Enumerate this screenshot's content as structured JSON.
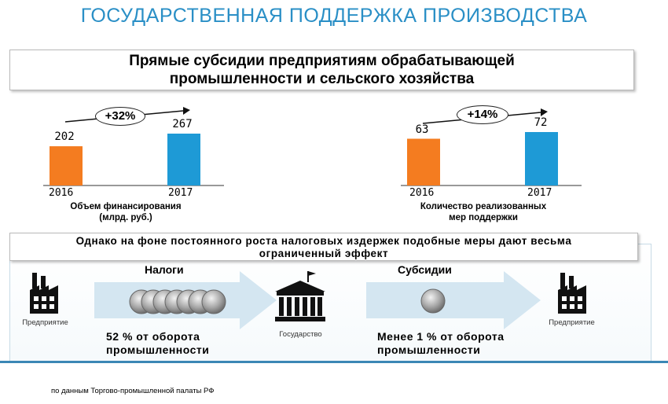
{
  "title": "ГОСУДАРСТВЕННАЯ ПОДДЕРЖКА ПРОИЗВОДСТВА",
  "header": {
    "line1": "Прямые субсидии предприятиям обрабатывающей",
    "line2": "промышленности и сельского хозяйства"
  },
  "chart_data": [
    {
      "type": "bar",
      "categories": [
        "2016",
        "2017"
      ],
      "values": [
        202,
        267
      ],
      "data_labels": [
        "202",
        "267"
      ],
      "colors": [
        "#f47c20",
        "#1e9ad6"
      ],
      "change_label": "+32%",
      "caption_line1": "Объем финансирования",
      "caption_line2": "(млрд. руб.)"
    },
    {
      "type": "bar",
      "categories": [
        "2016",
        "2017"
      ],
      "values": [
        63,
        72
      ],
      "data_labels": [
        "63",
        "72"
      ],
      "colors": [
        "#f47c20",
        "#1e9ad6"
      ],
      "change_label": "+14%",
      "caption_line1": "Количество реализованных",
      "caption_line2": "мер поддержки"
    }
  ],
  "bottom": {
    "header_line1": "Однако на фоне постоянного роста налоговых издержек подобные меры дают весьма",
    "header_line2": "ограниченный эффект",
    "enterprise_left": "Предприятие",
    "taxes_title": "Налоги",
    "taxes_stat_line1": "52 % от оборота",
    "taxes_stat_line2": "промышленности",
    "state": "Государство",
    "subsidies_title": "Субсидии",
    "subsidies_stat_line1": "Менее 1 % от оборота",
    "subsidies_stat_line2": "промышленности",
    "enterprise_right": "Предприятие"
  },
  "source": "по данным Торгово-промышленной палаты РФ",
  "colors": {
    "title": "#2a8fc6",
    "orange_bar": "#f47c20",
    "blue_bar": "#1e9ad6",
    "arrow_fill": "#d4e6f1"
  }
}
